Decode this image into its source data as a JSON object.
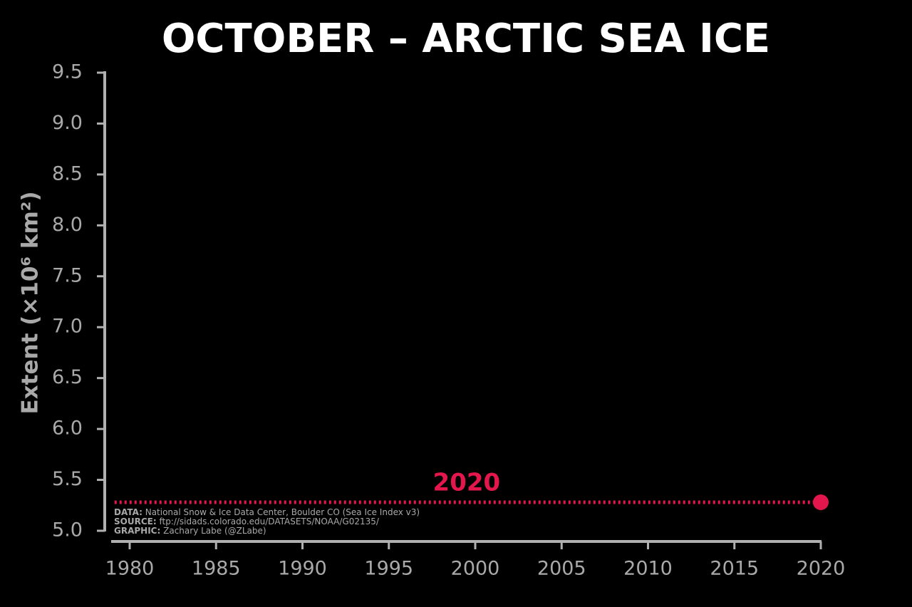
{
  "chart_data": {
    "type": "scatter",
    "title": "OCTOBER – ARCTIC SEA ICE",
    "y_label": "Extent (×10⁶ km²)",
    "x": [
      2020
    ],
    "values": [
      5.28
    ],
    "color": "#e3174c",
    "xlim": [
      1979,
      2020
    ],
    "xticks": [
      1980,
      1985,
      1990,
      1995,
      2000,
      2005,
      2010,
      2015,
      2020
    ],
    "ylim": [
      5.0,
      9.5
    ],
    "yticks": [
      {
        "value": 5.0,
        "label": "5.0"
      },
      5.5,
      {
        "value": 6.0,
        "label": "6.0"
      },
      6.5,
      {
        "value": 7.0,
        "label": "7.0"
      },
      7.5,
      {
        "value": 8.0,
        "label": "8.0"
      },
      8.5,
      {
        "value": 9.0,
        "label": "9.0"
      },
      9.5
    ],
    "notes": [
      {
        "label": "DATA:",
        "text": "National Snow & Ice Data Center, Boulder CO (Sea Ice Index v3)"
      },
      {
        "label": "SOURCE:",
        "text": "ftp://sidads.colorado.edu/DATASETS/NOAA/G02135/"
      },
      {
        "label": "GRAPHIC:",
        "text": "Zachary Labe (@ZLabe)"
      }
    ]
  }
}
